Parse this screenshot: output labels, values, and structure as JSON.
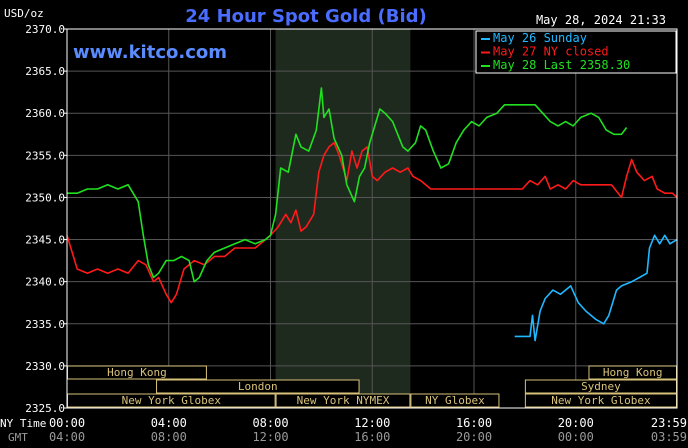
{
  "chart_data": {
    "type": "line",
    "title": "24 Hour Spot Gold (Bid)",
    "watermark": "www.kitco.com",
    "unit_label": "USD/oz",
    "timestamp": "May 28, 2024 21:33",
    "ylim": [
      2325,
      2370
    ],
    "y_ticks": [
      "2325.0",
      "2330.0",
      "2335.0",
      "2340.0",
      "2345.0",
      "2350.0",
      "2355.0",
      "2360.0",
      "2365.0",
      "2370.0"
    ],
    "x_ticks_ny": [
      "00:00",
      "04:00",
      "08:00",
      "12:00",
      "16:00",
      "20:00",
      "23:59"
    ],
    "x_ticks_gmt": [
      "04:00",
      "08:00",
      "12:00",
      "16:00",
      "20:00",
      "00:00",
      "03:59"
    ],
    "x_axis_labels": [
      "NY Time",
      "GMT"
    ],
    "grid": true,
    "legend_position": "top-right",
    "nymex_session": [
      8.2,
      13.5
    ],
    "colors": {
      "background": "#000000",
      "plot_border": "#ffffff",
      "grid": "#555555",
      "title": "#4a6cff",
      "watermark": "#5a8cff",
      "shade": "#1f2a1f",
      "session_fill": "#000000",
      "session_border": "#d8c27a",
      "session_text": "#d8c27a",
      "axis_text": "#ffffff",
      "gmt_text": "#9a9a9a"
    },
    "sessions": [
      {
        "label": "Hong Kong",
        "row": 0,
        "start": 0,
        "end": 5.5
      },
      {
        "label": "Hong Kong",
        "row": 0,
        "start": 20.5,
        "end": 23.98
      },
      {
        "label": "London",
        "row": 1,
        "start": 3.5,
        "end": 11.5
      },
      {
        "label": "Sydney",
        "row": 1,
        "start": 18.0,
        "end": 23.98
      },
      {
        "label": "New York Globex",
        "row": 2,
        "start": 0,
        "end": 8.2
      },
      {
        "label": "New York NYMEX",
        "row": 2,
        "start": 8.2,
        "end": 13.5
      },
      {
        "label": "NY Globex",
        "row": 2,
        "start": 13.5,
        "end": 17.0
      },
      {
        "label": "New York Globex",
        "row": 2,
        "start": 18.0,
        "end": 23.98
      }
    ],
    "series": [
      {
        "name": "May 26 Sunday",
        "color": "#20b8ff",
        "points": [
          [
            17.6,
            2333.5
          ],
          [
            18.2,
            2333.5
          ],
          [
            18.3,
            2336.0
          ],
          [
            18.4,
            2333.0
          ],
          [
            18.6,
            2336.5
          ],
          [
            18.8,
            2338.0
          ],
          [
            19.1,
            2339.0
          ],
          [
            19.4,
            2338.5
          ],
          [
            19.8,
            2339.5
          ],
          [
            20.1,
            2337.5
          ],
          [
            20.4,
            2336.5
          ],
          [
            20.8,
            2335.5
          ],
          [
            21.1,
            2335.0
          ],
          [
            21.3,
            2336.0
          ],
          [
            21.6,
            2339.0
          ],
          [
            21.8,
            2339.5
          ],
          [
            22.2,
            2340.0
          ],
          [
            22.5,
            2340.5
          ],
          [
            22.8,
            2341.0
          ],
          [
            22.9,
            2344.0
          ],
          [
            23.1,
            2345.5
          ],
          [
            23.3,
            2344.5
          ],
          [
            23.5,
            2345.5
          ],
          [
            23.7,
            2344.5
          ],
          [
            23.98,
            2345.0
          ]
        ]
      },
      {
        "name": "May 27 NY closed",
        "color": "#ff1a1a",
        "points": [
          [
            0.0,
            2345.5
          ],
          [
            0.4,
            2341.5
          ],
          [
            0.8,
            2341.0
          ],
          [
            1.2,
            2341.5
          ],
          [
            1.6,
            2341.0
          ],
          [
            2.0,
            2341.5
          ],
          [
            2.4,
            2341.0
          ],
          [
            2.8,
            2342.5
          ],
          [
            3.1,
            2342.0
          ],
          [
            3.4,
            2340.0
          ],
          [
            3.6,
            2340.5
          ],
          [
            3.9,
            2338.5
          ],
          [
            4.1,
            2337.5
          ],
          [
            4.3,
            2338.5
          ],
          [
            4.6,
            2341.5
          ],
          [
            5.0,
            2342.5
          ],
          [
            5.4,
            2342.0
          ],
          [
            5.8,
            2343.0
          ],
          [
            6.2,
            2343.0
          ],
          [
            6.6,
            2344.0
          ],
          [
            7.0,
            2344.0
          ],
          [
            7.4,
            2344.0
          ],
          [
            7.8,
            2345.0
          ],
          [
            8.0,
            2345.5
          ],
          [
            8.3,
            2346.5
          ],
          [
            8.6,
            2348.0
          ],
          [
            8.8,
            2347.0
          ],
          [
            9.0,
            2348.5
          ],
          [
            9.2,
            2346.0
          ],
          [
            9.4,
            2346.5
          ],
          [
            9.7,
            2348.0
          ],
          [
            9.9,
            2353.0
          ],
          [
            10.1,
            2355.0
          ],
          [
            10.3,
            2356.0
          ],
          [
            10.5,
            2356.5
          ],
          [
            10.7,
            2355.0
          ],
          [
            10.9,
            2353.0
          ],
          [
            11.0,
            2352.0
          ],
          [
            11.2,
            2355.5
          ],
          [
            11.4,
            2353.5
          ],
          [
            11.6,
            2355.5
          ],
          [
            11.8,
            2356.0
          ],
          [
            12.0,
            2352.5
          ],
          [
            12.2,
            2352.0
          ],
          [
            12.5,
            2353.0
          ],
          [
            12.8,
            2353.5
          ],
          [
            13.1,
            2353.0
          ],
          [
            13.4,
            2353.5
          ],
          [
            13.6,
            2352.5
          ],
          [
            13.9,
            2352.0
          ],
          [
            14.1,
            2351.5
          ],
          [
            14.3,
            2351.0
          ],
          [
            15.0,
            2351.0
          ],
          [
            16.0,
            2351.0
          ],
          [
            17.0,
            2351.0
          ],
          [
            17.9,
            2351.0
          ],
          [
            18.2,
            2352.0
          ],
          [
            18.5,
            2351.5
          ],
          [
            18.8,
            2352.5
          ],
          [
            19.0,
            2351.0
          ],
          [
            19.3,
            2351.5
          ],
          [
            19.6,
            2351.0
          ],
          [
            19.9,
            2352.0
          ],
          [
            20.2,
            2351.5
          ],
          [
            20.6,
            2351.5
          ],
          [
            21.0,
            2351.5
          ],
          [
            21.4,
            2351.5
          ],
          [
            21.8,
            2350.0
          ],
          [
            22.0,
            2352.5
          ],
          [
            22.2,
            2354.5
          ],
          [
            22.4,
            2353.0
          ],
          [
            22.7,
            2352.0
          ],
          [
            23.0,
            2352.5
          ],
          [
            23.2,
            2351.0
          ],
          [
            23.5,
            2350.5
          ],
          [
            23.8,
            2350.5
          ],
          [
            23.98,
            2350.0
          ]
        ]
      },
      {
        "name": "May 28 Last 2358.30",
        "color": "#20e020",
        "points": [
          [
            0.0,
            2350.5
          ],
          [
            0.4,
            2350.5
          ],
          [
            0.8,
            2351.0
          ],
          [
            1.2,
            2351.0
          ],
          [
            1.6,
            2351.5
          ],
          [
            2.0,
            2351.0
          ],
          [
            2.4,
            2351.5
          ],
          [
            2.8,
            2349.5
          ],
          [
            3.0,
            2345.5
          ],
          [
            3.2,
            2342.0
          ],
          [
            3.4,
            2340.5
          ],
          [
            3.6,
            2341.0
          ],
          [
            3.9,
            2342.5
          ],
          [
            4.2,
            2342.5
          ],
          [
            4.5,
            2343.0
          ],
          [
            4.8,
            2342.5
          ],
          [
            5.0,
            2340.0
          ],
          [
            5.2,
            2340.5
          ],
          [
            5.5,
            2342.5
          ],
          [
            5.8,
            2343.5
          ],
          [
            6.2,
            2344.0
          ],
          [
            6.6,
            2344.5
          ],
          [
            7.0,
            2345.0
          ],
          [
            7.4,
            2344.5
          ],
          [
            7.8,
            2345.0
          ],
          [
            8.0,
            2345.5
          ],
          [
            8.2,
            2348.0
          ],
          [
            8.4,
            2353.5
          ],
          [
            8.7,
            2353.0
          ],
          [
            9.0,
            2357.5
          ],
          [
            9.2,
            2356.0
          ],
          [
            9.5,
            2355.5
          ],
          [
            9.8,
            2358.0
          ],
          [
            10.0,
            2363.0
          ],
          [
            10.1,
            2359.5
          ],
          [
            10.3,
            2360.5
          ],
          [
            10.5,
            2357.0
          ],
          [
            10.8,
            2355.0
          ],
          [
            11.0,
            2351.5
          ],
          [
            11.3,
            2349.5
          ],
          [
            11.5,
            2352.5
          ],
          [
            11.7,
            2353.5
          ],
          [
            11.9,
            2356.5
          ],
          [
            12.1,
            2358.5
          ],
          [
            12.3,
            2360.5
          ],
          [
            12.5,
            2360.0
          ],
          [
            12.8,
            2359.0
          ],
          [
            13.0,
            2357.5
          ],
          [
            13.2,
            2356.0
          ],
          [
            13.4,
            2355.5
          ],
          [
            13.7,
            2356.5
          ],
          [
            13.9,
            2358.5
          ],
          [
            14.1,
            2358.0
          ],
          [
            14.4,
            2355.5
          ],
          [
            14.7,
            2353.5
          ],
          [
            15.0,
            2354.0
          ],
          [
            15.3,
            2356.5
          ],
          [
            15.6,
            2358.0
          ],
          [
            15.9,
            2359.0
          ],
          [
            16.2,
            2358.5
          ],
          [
            16.5,
            2359.5
          ],
          [
            16.9,
            2360.0
          ],
          [
            17.2,
            2361.0
          ],
          [
            17.6,
            2361.0
          ],
          [
            18.0,
            2361.0
          ],
          [
            18.4,
            2361.0
          ],
          [
            18.7,
            2360.0
          ],
          [
            19.0,
            2359.0
          ],
          [
            19.3,
            2358.5
          ],
          [
            19.6,
            2359.0
          ],
          [
            19.9,
            2358.5
          ],
          [
            20.2,
            2359.5
          ],
          [
            20.6,
            2360.0
          ],
          [
            20.9,
            2359.5
          ],
          [
            21.2,
            2358.0
          ],
          [
            21.5,
            2357.5
          ],
          [
            21.8,
            2357.5
          ],
          [
            22.0,
            2358.3
          ]
        ]
      }
    ]
  }
}
